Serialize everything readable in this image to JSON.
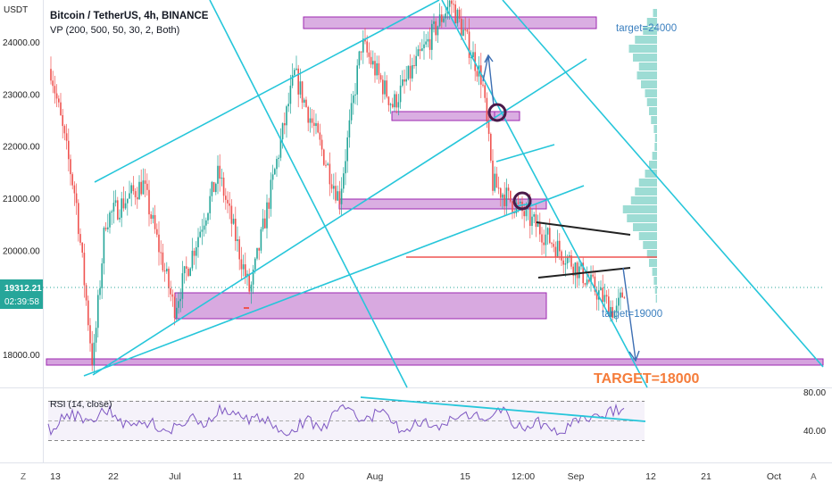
{
  "header": {
    "title": "Bitcoin / TetherUS, 4h, BINANCE",
    "indicator": "VP (200, 500, 50, 30, 2, Both)"
  },
  "price_axis": {
    "currency": "USDT",
    "ticks": [
      "24000.00",
      "23000.00",
      "22000.00",
      "21000.00",
      "20000.00",
      "18000.00"
    ],
    "last_price": "19312.21",
    "countdown": "02:39:58"
  },
  "annotations": {
    "target_24000": "target=24000",
    "target_19000": "target=19000",
    "target_18000": "TARGET=18000"
  },
  "rsi": {
    "label": "RSI (14, close)",
    "ticks": [
      "80.00",
      "40.00"
    ]
  },
  "time_axis": {
    "ticks": [
      "13",
      "22",
      "Jul",
      "11",
      "20",
      "Aug",
      "15",
      "12:00",
      "Sep",
      "12",
      "21",
      "Oct"
    ]
  },
  "corner_buttons": {
    "left": "Z",
    "right": "A"
  },
  "colors": {
    "bull": "#26a69a",
    "bear": "#ef5350",
    "trendline": "#26c6da",
    "zone_fill": "#ce93d8",
    "zone_border": "#9c27b0",
    "target_label": "#f57c3a",
    "rsi_line": "#7e57c2",
    "vp": "#4dbfb0"
  },
  "chart_data": {
    "type": "candlestick",
    "symbol": "Bitcoin / TetherUS",
    "timeframe": "4h",
    "exchange": "BINANCE",
    "price_range": [
      17400,
      25000
    ],
    "approx_path": [
      {
        "t": "Jun 13",
        "close": 23500
      },
      {
        "t": "Jun 16",
        "close": 21000
      },
      {
        "t": "Jun 18",
        "close": 17800
      },
      {
        "t": "Jun 20",
        "close": 20600
      },
      {
        "t": "Jun 26",
        "close": 21300
      },
      {
        "t": "Jun 30",
        "close": 18900
      },
      {
        "t": "Jul 7",
        "close": 21500
      },
      {
        "t": "Jul 12",
        "close": 19200
      },
      {
        "t": "Jul 20",
        "close": 23400
      },
      {
        "t": "Jul 26",
        "close": 21000
      },
      {
        "t": "Jul 30",
        "close": 24000
      },
      {
        "t": "Aug 5",
        "close": 22800
      },
      {
        "t": "Aug 14",
        "close": 24800
      },
      {
        "t": "Aug 18",
        "close": 23300
      },
      {
        "t": "Aug 19",
        "close": 21300
      },
      {
        "t": "Aug 26",
        "close": 20500
      },
      {
        "t": "Sep 3",
        "close": 19700
      },
      {
        "t": "Sep 6",
        "close": 18800
      },
      {
        "t": "Sep 8",
        "close": 19312
      }
    ],
    "last_price": 19312.21,
    "rsi_levels": [
      80,
      40
    ]
  }
}
